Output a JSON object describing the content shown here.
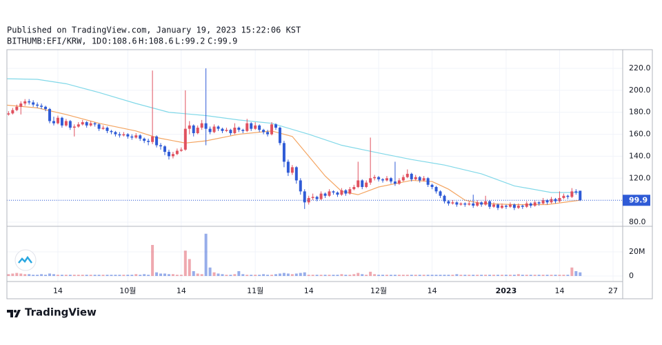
{
  "header": {
    "published": "Published on TradingView.com, January 19, 2023 15:22:06 KST",
    "symbol": "BITHUMB:EFI/KRW, 1D",
    "open": "O:108.6",
    "high": "H:108.6",
    "low": "L:99.2",
    "close": "C:99.9"
  },
  "brand": "TradingView",
  "chart_data": {
    "type": "candlestick",
    "up_color": "#e0515f",
    "down_color": "#2f5bd6",
    "xlim": [
      0.6,
      150.35
    ],
    "xticks": [
      {
        "value": 13,
        "label": "14"
      },
      {
        "value": 30,
        "label": "10월"
      },
      {
        "value": 43,
        "label": "14"
      },
      {
        "value": 61,
        "label": "11월"
      },
      {
        "value": 74,
        "label": "14"
      },
      {
        "value": 91,
        "label": "12월"
      },
      {
        "value": 104,
        "label": "14"
      },
      {
        "value": 122,
        "label": "2023"
      },
      {
        "value": 135,
        "label": "14"
      },
      {
        "value": 148,
        "label": "27"
      }
    ],
    "ylim": [
      76.2,
      237
    ],
    "yticks": [
      {
        "value": 80,
        "label": "80.0"
      },
      {
        "value": 100,
        "label": "100.0"
      },
      {
        "value": 120,
        "label": "120.0"
      },
      {
        "value": 140,
        "label": "140.0"
      },
      {
        "value": 160,
        "label": "160.0"
      },
      {
        "value": 180,
        "label": "180.0"
      },
      {
        "value": 200,
        "label": "200.0"
      },
      {
        "value": 220,
        "label": "220.0"
      }
    ],
    "y2lim": [
      -4.6,
      40
    ],
    "y2ticks": [
      0,
      {
        "value": 20,
        "label": "20M"
      }
    ],
    "grid": true,
    "last_price": 99.9,
    "candles": [
      [
        177,
        180,
        176,
        178
      ],
      [
        178,
        181,
        177,
        179
      ],
      [
        179,
        184,
        178,
        182
      ],
      [
        182,
        187,
        181,
        185
      ],
      [
        185,
        190,
        178,
        188
      ],
      [
        188,
        192,
        186,
        190
      ],
      [
        190,
        192,
        187,
        189
      ],
      [
        189,
        191,
        185,
        187
      ],
      [
        187,
        189,
        184,
        186
      ],
      [
        186,
        188,
        183,
        185
      ],
      [
        185,
        186,
        181,
        183
      ],
      [
        183,
        184,
        170,
        172
      ],
      [
        172,
        176,
        168,
        170
      ],
      [
        170,
        177,
        169,
        175
      ],
      [
        175,
        176,
        166,
        168
      ],
      [
        168,
        174,
        167,
        172
      ],
      [
        172,
        173,
        164,
        166
      ],
      [
        166,
        169,
        158,
        167
      ],
      [
        167,
        171,
        166,
        169
      ],
      [
        169,
        173,
        168,
        171
      ],
      [
        171,
        172,
        166,
        168
      ],
      [
        168,
        172,
        167,
        170
      ],
      [
        170,
        171,
        167,
        169
      ],
      [
        169,
        170,
        163,
        165
      ],
      [
        165,
        168,
        164,
        166
      ],
      [
        166,
        167,
        161,
        163
      ],
      [
        163,
        164,
        160,
        162
      ],
      [
        162,
        163,
        158,
        160
      ],
      [
        160,
        162,
        157,
        159
      ],
      [
        159,
        162,
        158,
        160
      ],
      [
        160,
        161,
        156,
        158
      ],
      [
        158,
        160,
        155,
        157
      ],
      [
        157,
        161,
        156,
        159
      ],
      [
        159,
        160,
        154,
        156
      ],
      [
        156,
        157,
        152,
        154
      ],
      [
        154,
        156,
        150,
        153
      ],
      [
        153,
        218,
        151,
        158
      ],
      [
        158,
        159,
        148,
        150
      ],
      [
        150,
        152,
        146,
        149
      ],
      [
        149,
        150,
        141,
        144
      ],
      [
        144,
        146,
        137,
        140
      ],
      [
        140,
        144,
        138,
        142
      ],
      [
        142,
        147,
        141,
        145
      ],
      [
        145,
        148,
        144,
        146
      ],
      [
        146,
        200,
        145,
        165
      ],
      [
        165,
        172,
        160,
        168
      ],
      [
        168,
        169,
        158,
        161
      ],
      [
        161,
        168,
        160,
        166
      ],
      [
        166,
        173,
        164,
        170
      ],
      [
        170,
        220,
        150,
        165
      ],
      [
        165,
        167,
        160,
        162
      ],
      [
        162,
        169,
        161,
        167
      ],
      [
        167,
        168,
        163,
        165
      ],
      [
        165,
        166,
        161,
        163
      ],
      [
        163,
        166,
        162,
        164
      ],
      [
        164,
        165,
        159,
        161
      ],
      [
        161,
        170,
        160,
        166
      ],
      [
        166,
        167,
        162,
        164
      ],
      [
        164,
        165,
        161,
        163
      ],
      [
        163,
        174,
        162,
        170
      ],
      [
        170,
        171,
        163,
        165
      ],
      [
        165,
        171,
        164,
        168
      ],
      [
        168,
        169,
        162,
        164
      ],
      [
        164,
        165,
        160,
        162
      ],
      [
        162,
        164,
        158,
        160
      ],
      [
        160,
        171,
        159,
        169
      ],
      [
        169,
        170,
        164,
        166
      ],
      [
        166,
        167,
        150,
        152
      ],
      [
        152,
        154,
        130,
        135
      ],
      [
        135,
        137,
        122,
        125
      ],
      [
        125,
        132,
        123,
        130
      ],
      [
        130,
        131,
        115,
        118
      ],
      [
        118,
        120,
        105,
        108
      ],
      [
        108,
        110,
        92,
        98
      ],
      [
        98,
        104,
        96,
        102
      ],
      [
        102,
        106,
        100,
        103
      ],
      [
        103,
        104,
        99,
        101
      ],
      [
        101,
        108,
        100,
        106
      ],
      [
        106,
        107,
        102,
        104
      ],
      [
        104,
        110,
        103,
        108
      ],
      [
        108,
        109,
        105,
        107
      ],
      [
        107,
        108,
        103,
        105
      ],
      [
        105,
        111,
        104,
        109
      ],
      [
        109,
        110,
        104,
        106
      ],
      [
        106,
        112,
        105,
        110
      ],
      [
        110,
        114,
        109,
        112
      ],
      [
        112,
        135,
        111,
        118
      ],
      [
        118,
        119,
        110,
        112
      ],
      [
        112,
        118,
        111,
        116
      ],
      [
        116,
        157,
        114,
        120
      ],
      [
        120,
        123,
        118,
        121
      ],
      [
        121,
        122,
        117,
        119
      ],
      [
        119,
        120,
        116,
        118
      ],
      [
        118,
        122,
        117,
        120
      ],
      [
        120,
        121,
        115,
        117
      ],
      [
        117,
        135,
        113,
        115
      ],
      [
        115,
        120,
        114,
        118
      ],
      [
        118,
        123,
        117,
        121
      ],
      [
        121,
        128,
        120,
        124
      ],
      [
        124,
        125,
        117,
        119
      ],
      [
        119,
        123,
        118,
        121
      ],
      [
        121,
        122,
        116,
        118
      ],
      [
        118,
        122,
        117,
        120
      ],
      [
        120,
        121,
        112,
        114
      ],
      [
        114,
        115,
        110,
        112
      ],
      [
        112,
        113,
        106,
        108
      ],
      [
        108,
        109,
        102,
        104
      ],
      [
        104,
        105,
        97,
        99
      ],
      [
        99,
        100,
        95,
        97
      ],
      [
        97,
        100,
        96,
        98
      ],
      [
        98,
        99,
        94,
        96
      ],
      [
        96,
        98,
        95,
        97
      ],
      [
        97,
        98,
        94,
        96
      ],
      [
        96,
        99,
        95,
        97
      ],
      [
        97,
        105,
        93,
        95
      ],
      [
        95,
        100,
        94,
        98
      ],
      [
        98,
        99,
        94,
        96
      ],
      [
        96,
        104,
        95,
        99
      ],
      [
        99,
        100,
        92,
        94
      ],
      [
        94,
        98,
        93,
        96
      ],
      [
        96,
        97,
        91,
        93
      ],
      [
        93,
        97,
        92,
        95
      ],
      [
        95,
        96,
        92,
        94
      ],
      [
        94,
        98,
        93,
        96
      ],
      [
        96,
        97,
        91,
        93
      ],
      [
        93,
        97,
        92,
        95
      ],
      [
        95,
        96,
        92,
        94
      ],
      [
        94,
        99,
        93,
        97
      ],
      [
        97,
        98,
        93,
        95
      ],
      [
        95,
        100,
        94,
        98
      ],
      [
        98,
        99,
        95,
        97
      ],
      [
        97,
        102,
        96,
        100
      ],
      [
        100,
        101,
        96,
        98
      ],
      [
        98,
        103,
        97,
        101
      ],
      [
        101,
        102,
        97,
        99
      ],
      [
        99,
        108,
        98,
        102
      ],
      [
        102,
        106,
        101,
        104
      ],
      [
        104,
        105,
        101,
        103
      ],
      [
        103,
        111,
        102,
        108
      ],
      [
        108,
        110,
        105,
        107
      ],
      [
        108.6,
        108.6,
        99.2,
        99.9
      ]
    ],
    "volume": [
      1,
      1.5,
      2,
      2.5,
      2,
      1.5,
      1.5,
      1,
      1,
      1.5,
      1,
      2,
      1.5,
      1,
      1,
      1,
      1,
      1,
      1,
      1,
      1,
      1,
      1,
      1,
      1,
      1,
      1,
      1,
      1,
      1,
      1,
      1,
      1.5,
      1,
      1.5,
      1,
      25.7,
      3,
      2,
      2,
      1.5,
      1.5,
      1,
      1,
      21,
      14,
      4,
      2,
      1.5,
      35,
      7,
      3,
      2,
      1.5,
      1,
      1,
      1.5,
      4,
      1.5,
      1,
      1,
      1,
      1,
      1.5,
      1,
      1,
      1.5,
      2,
      2.5,
      2,
      1.5,
      2,
      2.5,
      3,
      1,
      1,
      1,
      1,
      1,
      1,
      1,
      1,
      1.5,
      1,
      1,
      1.5,
      2.5,
      1.5,
      1,
      3.5,
      1.5,
      1,
      1,
      1,
      1,
      1,
      1,
      1,
      1,
      1,
      1,
      1,
      1,
      1,
      1,
      1,
      1,
      1,
      1,
      1,
      1.5,
      1,
      1,
      1,
      1,
      1,
      1,
      1,
      1,
      1,
      1,
      1,
      1,
      1,
      1,
      1.5,
      1,
      1,
      1,
      1,
      1,
      1,
      1,
      1,
      1,
      1,
      1,
      1,
      7,
      4,
      3
    ],
    "series": [
      {
        "color": "#f4a460",
        "x": [
          0,
          8,
          15,
          23,
          32,
          37,
          44,
          49,
          57,
          65,
          70,
          74,
          78,
          82,
          86,
          91,
          99,
          104,
          108,
          112,
          116,
          124,
          132,
          140
        ],
        "values": [
          186.7,
          184,
          178,
          170,
          163,
          157,
          152,
          154,
          160,
          163,
          158,
          140,
          122,
          108,
          105,
          112,
          118,
          117,
          110,
          100,
          97,
          96,
          96,
          100
        ]
      },
      {
        "color": "#80d8e8",
        "x": [
          0,
          8,
          15,
          23,
          32,
          40,
          49,
          57,
          65,
          74,
          82,
          91,
          99,
          107,
          116,
          124,
          133,
          140
        ],
        "values": [
          210.6,
          210,
          206,
          198,
          188,
          180,
          177,
          173,
          170,
          160,
          150,
          143,
          137,
          132,
          124,
          113,
          107,
          107
        ]
      }
    ]
  }
}
